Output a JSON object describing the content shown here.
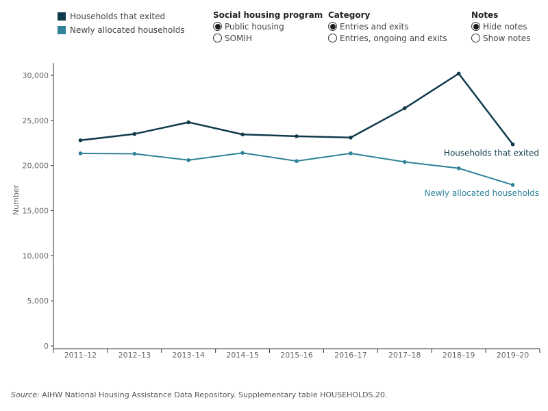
{
  "legend": {
    "items": [
      {
        "label": "Households that exited",
        "color": "#0f3a4b"
      },
      {
        "label": "Newly allocated households",
        "color": "#2e8399"
      }
    ]
  },
  "controls": {
    "program": {
      "title": "Social housing program",
      "options": [
        "Public housing",
        "SOMIH"
      ],
      "selected": 0
    },
    "category": {
      "title": "Category",
      "options": [
        "Entries and exits",
        "Entries, ongoing and exits"
      ],
      "selected": 0
    },
    "notes": {
      "title": "Notes",
      "options": [
        "Hide notes",
        "Show notes"
      ],
      "selected": 0
    }
  },
  "chart_data": {
    "type": "line",
    "x": [
      "2011–12",
      "2012–13",
      "2013–14",
      "2014–15",
      "2015–16",
      "2016–17",
      "2017–18",
      "2018–19",
      "2019–20"
    ],
    "series": [
      {
        "name": "Households that exited",
        "color": "#0f3a4b",
        "values": [
          22800,
          23500,
          24800,
          23450,
          23250,
          23100,
          26350,
          30200,
          22350
        ]
      },
      {
        "name": "Newly allocated households",
        "color": "#2e8399",
        "values": [
          21350,
          21300,
          20600,
          21400,
          20500,
          21350,
          20400,
          19700,
          17850
        ]
      }
    ],
    "ylabel": "Number",
    "ylim": [
      0,
      30000
    ],
    "yticks": [
      0,
      5000,
      10000,
      15000,
      20000,
      25000,
      30000
    ],
    "ytick_labels": [
      "0",
      "5,000",
      "10,000",
      "15,000",
      "20,000",
      "25,000",
      "30,000"
    ]
  },
  "source": {
    "prefix": "Source:",
    "text": " AIHW National Housing Assistance Data Repository. Supplementary table HOUSEHOLDS.20."
  }
}
